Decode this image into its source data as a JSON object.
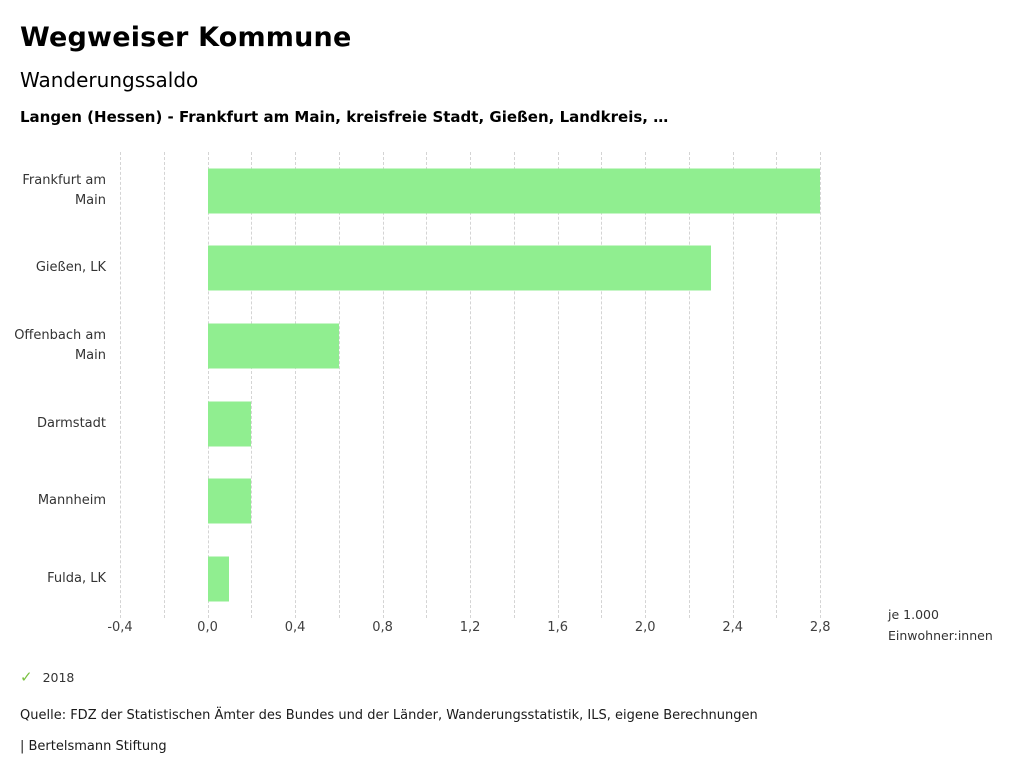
{
  "header": {
    "title": "Wegweiser Kommune",
    "subtitle": "Wanderungssaldo",
    "selection": "Langen (Hessen) - Frankfurt am Main, kreisfreie Stadt, Gießen, Landkreis, …"
  },
  "chart_data": {
    "type": "bar",
    "orientation": "horizontal",
    "title": "Wanderungssaldo",
    "categories": [
      "Frankfurt am Main",
      "Gießen, LK",
      "Offenbach am Main",
      "Darmstadt",
      "Mannheim",
      "Fulda, LK"
    ],
    "series": [
      {
        "name": "2018",
        "values": [
          2.8,
          2.3,
          0.6,
          0.2,
          0.2,
          0.1
        ]
      }
    ],
    "values": [
      2.8,
      2.3,
      0.6,
      0.2,
      0.2,
      0.1
    ],
    "xlim": [
      -0.4,
      3.0
    ],
    "ticks": [
      -0.4,
      0.0,
      0.4,
      0.8,
      1.2,
      1.6,
      2.0,
      2.4,
      2.8
    ],
    "tick_labels": [
      "-0,4",
      "0,0",
      "0,4",
      "0,8",
      "1,2",
      "1,6",
      "2,0",
      "2,4",
      "2,8"
    ],
    "minor_step": 0.2,
    "grid": "dashed-vertical",
    "bar_color": "#90ee90",
    "unit_label_line1": "je 1.000",
    "unit_label_line2": "Einwohner:innen",
    "legend_position": "bottom-left"
  },
  "legend": {
    "year": "2018",
    "check_glyph": "✓",
    "check_color": "#7ac142"
  },
  "footer": {
    "source": "Quelle: FDZ der Statistischen Ämter des Bundes und der Länder, Wanderungsstatistik, ILS, eigene Berechnungen",
    "attribution": "| Bertelsmann Stiftung"
  }
}
